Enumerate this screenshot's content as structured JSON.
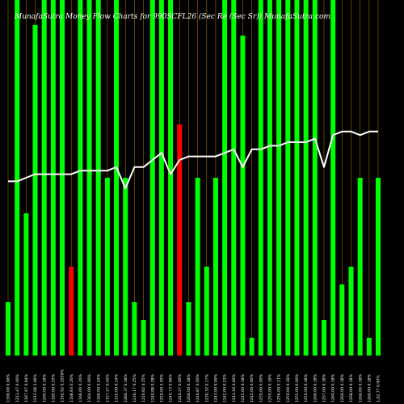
{
  "title": "MunafaSutra Money Flow Charts for 990SCFL26 (Sec Re (Sec Sr)) MunafaSutra.com",
  "chart_data": {
    "type": "bar",
    "ylim": [
      0,
      100
    ],
    "series": [
      {
        "values": [
          15,
          100,
          40,
          93,
          100,
          100,
          100,
          25,
          100,
          100,
          100,
          50,
          100,
          50,
          15,
          10,
          100,
          100,
          100,
          65,
          15,
          50,
          25,
          50,
          100,
          100,
          90,
          5,
          100,
          100,
          100,
          100,
          100,
          100,
          100,
          10,
          100,
          20,
          25,
          50,
          5,
          50
        ],
        "colors": [
          "green",
          "green",
          "green",
          "green",
          "green",
          "green",
          "green",
          "red",
          "green",
          "green",
          "green",
          "green",
          "green",
          "green",
          "green",
          "green",
          "green",
          "green",
          "green",
          "red",
          "green",
          "green",
          "green",
          "green",
          "green",
          "green",
          "green",
          "green",
          "green",
          "green",
          "green",
          "green",
          "green",
          "green",
          "green",
          "green",
          "green",
          "green",
          "green",
          "green",
          "green",
          "green"
        ]
      },
      {
        "type": "line",
        "values": [
          49,
          49,
          50,
          51,
          51,
          51,
          51,
          51,
          52,
          52,
          52,
          52,
          53,
          47,
          53,
          53,
          55,
          57,
          51,
          55,
          56,
          56,
          56,
          56,
          57,
          58,
          53,
          58,
          58,
          59,
          59,
          60,
          60,
          60,
          61,
          53,
          62,
          63,
          63,
          62,
          63,
          63
        ]
      }
    ],
    "x_labels": [
      "1300.00 0.96%",
      "1213.47 0.00%",
      "1187.67 0.94%",
      "1212.08 2.66%",
      "1205.00 0.18%",
      "1195.00 0.55%",
      "1192.92 0.2030%",
      "1168.83 0.20%",
      "1166.00 0.20%",
      "1164.09 0.00%",
      "1160.00 0.24%",
      "1157.27 0.40%",
      "1155.00 0.14%",
      "1280.37 0.18%",
      "1230.17 0.25%",
      "1220.82 0.25%",
      "1240.08 0.28%",
      "1250.00 2.00%",
      "1240.73 0.96%",
      "1240.27 0.00%",
      "1260.00 0.18%",
      "1240.87 0.00%",
      "1230.32 0.17%",
      "1243.00 0.00%",
      "1242.00 0.23%",
      "1243.20 0.00%",
      "1245.00 0.18%",
      "1245.00 0.00%",
      "1250.00 0.00%",
      "1250.00 0.16%",
      "1256.00 0.11%",
      "1250.00 0.18%",
      "1255.00 0.00%",
      "1250.00 0.18%",
      "1260.00 0.18%",
      "1257.00 0.18%",
      "1260.00 0.18%",
      "1260.00 0.18%",
      "1268.00 0.18%",
      "1266.00 0.18%",
      "1260.00 0.18%",
      "1,02.77 0.00%"
    ],
    "grid": "vertical",
    "bar_colors": {
      "green": "#00ff00",
      "red": "#ff0000"
    },
    "line_color": "#ffffff",
    "grid_color": "#d98a00",
    "background": "#000000"
  }
}
